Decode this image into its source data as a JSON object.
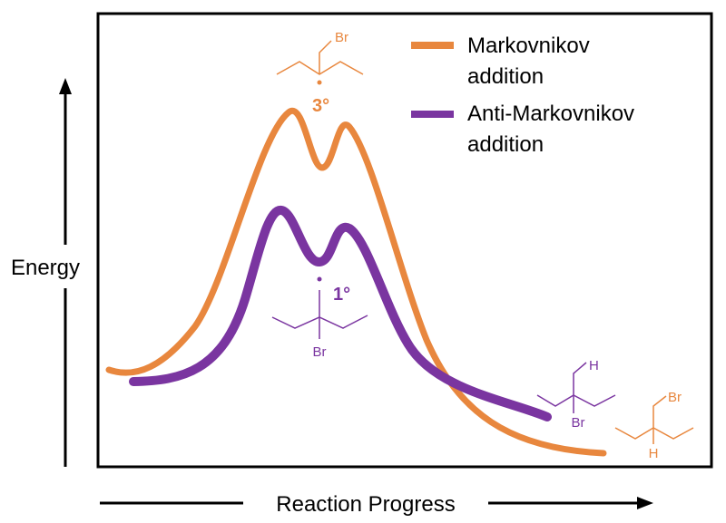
{
  "axes": {
    "y_label": "Energy",
    "x_label": "Reaction Progress"
  },
  "legend": [
    {
      "label_line1": "Markovnikov",
      "label_line2": "addition",
      "color": "#e8873e"
    },
    {
      "label_line1": "Anti-Markovnikov",
      "label_line2": "addition",
      "color": "#7a35a0"
    }
  ],
  "colors": {
    "markovnikov": "#e8873e",
    "anti_markovnikov": "#7a35a0",
    "axis": "#000000"
  },
  "annotations": {
    "tertiary_label": "3°",
    "primary_label": "1°",
    "bromine": "Br",
    "hydrogen": "H"
  }
}
